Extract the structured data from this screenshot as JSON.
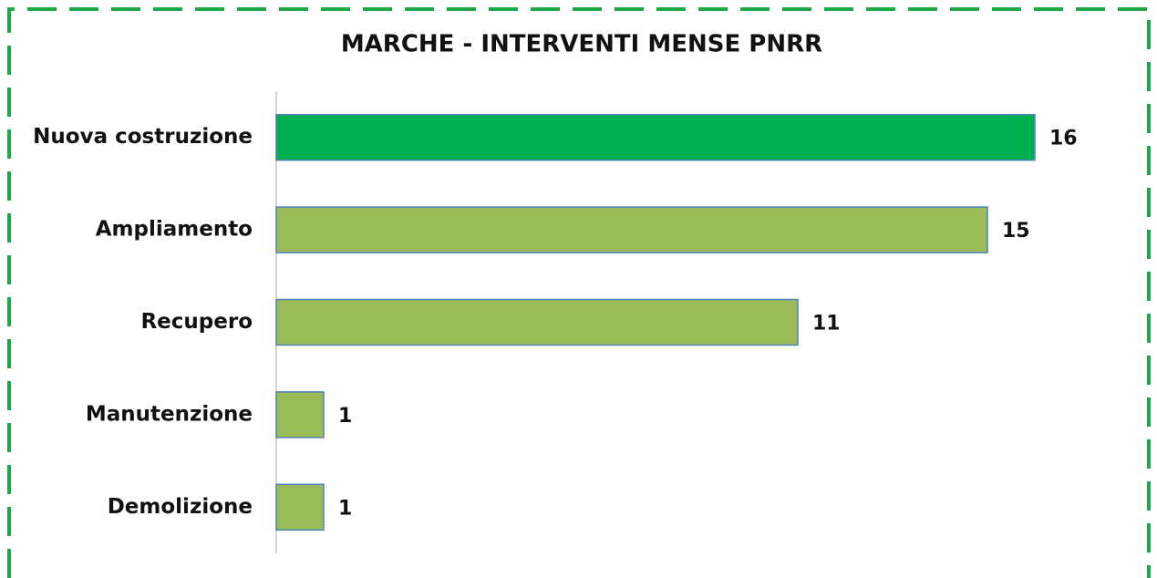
{
  "chart_data": {
    "type": "bar",
    "orientation": "horizontal",
    "title": "MARCHE - INTERVENTI MENSE PNRR",
    "categories": [
      "Nuova costruzione",
      "Ampliamento",
      "Recupero",
      "Manutenzione",
      "Demolizione"
    ],
    "values": [
      16,
      15,
      11,
      1,
      1
    ],
    "colors": [
      "#00b050",
      "#9bbb59",
      "#9bbb59",
      "#9bbb59",
      "#9bbb59"
    ],
    "xlim": [
      0,
      16
    ]
  }
}
